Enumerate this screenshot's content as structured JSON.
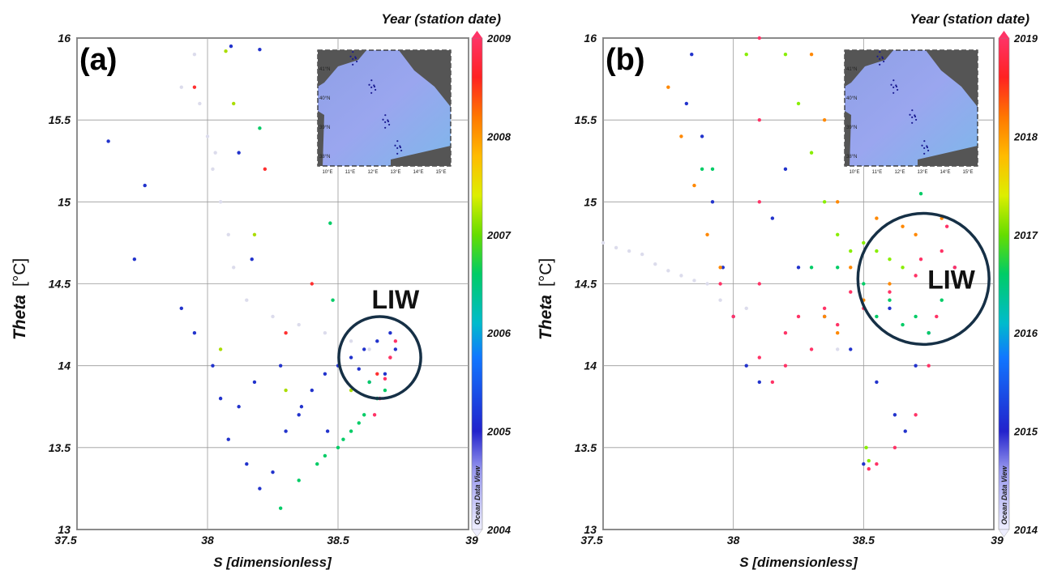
{
  "chart_data": [
    {
      "type": "scatter",
      "panel_label": "(a)",
      "xlabel": "S [dimensionless]",
      "ylabel": "Theta",
      "ylabel_unit": "[°C]",
      "xlim": [
        37.5,
        39
      ],
      "ylim": [
        13,
        16
      ],
      "x_ticks": [
        "37.5",
        "38",
        "38.5",
        "39"
      ],
      "y_ticks": [
        "13",
        "13.5",
        "14",
        "14.5",
        "15",
        "15.5",
        "16"
      ],
      "grid": true,
      "colorbar": {
        "title": "Year (station date)",
        "min": 2004,
        "max": 2009,
        "ticks": [
          "2004",
          "2005",
          "2006",
          "2007",
          "2008",
          "2009"
        ],
        "watermark": "Ocean Data View"
      },
      "annotation": {
        "text": "LIW",
        "circle_center": [
          38.66,
          14.05
        ],
        "circle_radius_theta": 0.25
      },
      "inset_map": {
        "lat_labels": [
          "41°N",
          "40°N",
          "39°N",
          "38°N"
        ],
        "lon_labels": [
          "10°E",
          "11°E",
          "12°E",
          "13°E",
          "14°E",
          "15°E"
        ]
      },
      "series": [
        {
          "year": 2004,
          "color": "#dcdcec",
          "points": [
            [
              37.95,
              15.9
            ],
            [
              37.97,
              15.6
            ],
            [
              38.0,
              15.4
            ],
            [
              38.02,
              15.2
            ],
            [
              38.05,
              15.0
            ],
            [
              38.08,
              14.8
            ],
            [
              38.1,
              14.6
            ],
            [
              38.15,
              14.4
            ],
            [
              38.25,
              14.3
            ],
            [
              38.35,
              14.25
            ],
            [
              38.45,
              14.2
            ],
            [
              38.55,
              14.15
            ],
            [
              38.62,
              14.1
            ],
            [
              37.9,
              15.7
            ],
            [
              38.03,
              15.3
            ]
          ]
        },
        {
          "year": 2005,
          "color": "#2233cc",
          "points": [
            [
              37.62,
              15.37
            ],
            [
              37.72,
              14.65
            ],
            [
              37.76,
              15.1
            ],
            [
              37.9,
              14.35
            ],
            [
              37.95,
              14.2
            ],
            [
              38.02,
              14.0
            ],
            [
              38.05,
              13.8
            ],
            [
              38.08,
              13.55
            ],
            [
              38.12,
              13.75
            ],
            [
              38.15,
              13.4
            ],
            [
              38.2,
              13.25
            ],
            [
              38.25,
              13.35
            ],
            [
              38.3,
              13.6
            ],
            [
              38.35,
              13.7
            ],
            [
              38.4,
              13.85
            ],
            [
              38.45,
              13.95
            ],
            [
              38.5,
              14.0
            ],
            [
              38.55,
              14.05
            ],
            [
              38.6,
              14.1
            ],
            [
              38.65,
              14.15
            ],
            [
              38.7,
              14.2
            ],
            [
              38.72,
              14.1
            ],
            [
              38.68,
              13.95
            ],
            [
              38.62,
              13.9
            ],
            [
              38.58,
              13.98
            ],
            [
              38.2,
              15.93
            ],
            [
              38.17,
              14.65
            ],
            [
              38.12,
              15.3
            ],
            [
              38.09,
              15.95
            ],
            [
              38.28,
              14.0
            ],
            [
              38.36,
              13.75
            ],
            [
              38.46,
              13.6
            ],
            [
              38.18,
              13.9
            ]
          ]
        },
        {
          "year": 2006,
          "color": "#00cc66",
          "points": [
            [
              38.28,
              13.13
            ],
            [
              38.35,
              13.3
            ],
            [
              38.42,
              13.4
            ],
            [
              38.5,
              13.5
            ],
            [
              38.55,
              13.6
            ],
            [
              38.6,
              13.7
            ],
            [
              38.65,
              13.8
            ],
            [
              38.68,
              13.85
            ],
            [
              38.45,
              13.45
            ],
            [
              38.52,
              13.55
            ],
            [
              38.58,
              13.65
            ],
            [
              38.47,
              14.87
            ],
            [
              38.2,
              15.45
            ],
            [
              38.48,
              14.4
            ],
            [
              38.62,
              13.9
            ]
          ]
        },
        {
          "year": 2007,
          "color": "#aadd00",
          "points": [
            [
              38.1,
              15.6
            ],
            [
              38.07,
              15.92
            ],
            [
              38.18,
              14.8
            ],
            [
              38.05,
              14.1
            ],
            [
              38.3,
              13.85
            ],
            [
              38.55,
              13.85
            ]
          ]
        },
        {
          "year": 2008,
          "color": "#ff3030",
          "points": [
            [
              38.22,
              15.2
            ],
            [
              37.95,
              15.7
            ],
            [
              38.3,
              14.2
            ],
            [
              38.65,
              13.95
            ],
            [
              38.4,
              14.5
            ],
            [
              38.7,
              14.05
            ]
          ]
        },
        {
          "year": 2009,
          "color": "#ff3366",
          "points": [
            [
              38.7,
              14.05
            ],
            [
              38.72,
              14.15
            ],
            [
              38.68,
              13.92
            ],
            [
              38.66,
              13.8
            ],
            [
              38.64,
              13.7
            ]
          ]
        }
      ]
    },
    {
      "type": "scatter",
      "panel_label": "(b)",
      "xlabel": "S [dimensionless]",
      "ylabel": "Theta",
      "ylabel_unit": "[°C]",
      "xlim": [
        37.5,
        39
      ],
      "ylim": [
        13,
        16
      ],
      "x_ticks": [
        "37.5",
        "38",
        "38.5",
        "39"
      ],
      "y_ticks": [
        "13",
        "13.5",
        "14",
        "14.5",
        "15",
        "15.5",
        "16"
      ],
      "grid": true,
      "colorbar": {
        "title": "Year (station date)",
        "min": 2014,
        "max": 2019,
        "ticks": [
          "2014",
          "2015",
          "2016",
          "2017",
          "2018",
          "2019"
        ],
        "watermark": "Ocean Data View"
      },
      "annotation": {
        "text": "LIW",
        "circle_center": [
          38.73,
          14.53
        ],
        "circle_radius_theta": 0.4
      },
      "inset_map": {
        "lat_labels": [
          "41°N",
          "40°N",
          "39°N",
          "38°N"
        ],
        "lon_labels": [
          "10°E",
          "11°E",
          "12°E",
          "13°E",
          "14°E",
          "15°E"
        ]
      },
      "series": [
        {
          "year": 2014,
          "color": "#dcdcec",
          "points": [
            [
              37.5,
              14.75
            ],
            [
              37.6,
              14.7
            ],
            [
              37.7,
              14.62
            ],
            [
              37.8,
              14.55
            ],
            [
              37.9,
              14.5
            ],
            [
              37.95,
              14.4
            ],
            [
              37.75,
              14.58
            ],
            [
              37.85,
              14.52
            ],
            [
              38.05,
              14.35
            ],
            [
              38.2,
              14.2
            ],
            [
              38.4,
              14.1
            ],
            [
              37.55,
              14.72
            ],
            [
              37.65,
              14.68
            ]
          ]
        },
        {
          "year": 2015,
          "color": "#2233cc",
          "points": [
            [
              37.84,
              15.9
            ],
            [
              37.88,
              15.4
            ],
            [
              37.92,
              15.0
            ],
            [
              37.96,
              14.6
            ],
            [
              38.0,
              14.3
            ],
            [
              38.05,
              14.0
            ],
            [
              38.1,
              13.9
            ],
            [
              38.2,
              15.2
            ],
            [
              38.25,
              14.6
            ],
            [
              38.35,
              14.3
            ],
            [
              38.45,
              14.1
            ],
            [
              38.55,
              13.9
            ],
            [
              38.62,
              13.7
            ],
            [
              38.66,
              13.6
            ],
            [
              38.7,
              14.0
            ],
            [
              38.75,
              14.2
            ],
            [
              38.5,
              13.4
            ],
            [
              38.6,
              14.35
            ],
            [
              38.85,
              14.6
            ],
            [
              37.82,
              15.6
            ],
            [
              38.15,
              14.9
            ]
          ]
        },
        {
          "year": 2016,
          "color": "#00cc66",
          "points": [
            [
              37.88,
              15.2
            ],
            [
              37.92,
              15.2
            ],
            [
              38.3,
              14.6
            ],
            [
              38.4,
              14.6
            ],
            [
              38.5,
              14.5
            ],
            [
              38.6,
              14.4
            ],
            [
              38.7,
              14.3
            ],
            [
              38.75,
              14.2
            ],
            [
              38.8,
              14.4
            ],
            [
              38.65,
              14.25
            ],
            [
              38.72,
              15.05
            ],
            [
              38.55,
              14.3
            ]
          ]
        },
        {
          "year": 2017,
          "color": "#88ee00",
          "points": [
            [
              38.2,
              15.9
            ],
            [
              38.25,
              15.6
            ],
            [
              38.3,
              15.3
            ],
            [
              38.35,
              15.0
            ],
            [
              38.4,
              14.8
            ],
            [
              38.45,
              14.7
            ],
            [
              38.5,
              14.75
            ],
            [
              38.55,
              14.7
            ],
            [
              38.6,
              14.65
            ],
            [
              38.51,
              13.5
            ],
            [
              38.52,
              13.42
            ],
            [
              38.65,
              14.6
            ],
            [
              38.05,
              15.9
            ]
          ]
        },
        {
          "year": 2018,
          "color": "#ff8800",
          "points": [
            [
              37.75,
              15.7
            ],
            [
              37.8,
              15.4
            ],
            [
              37.85,
              15.1
            ],
            [
              37.9,
              14.8
            ],
            [
              37.95,
              14.6
            ],
            [
              38.3,
              15.9
            ],
            [
              38.35,
              15.5
            ],
            [
              38.4,
              15.0
            ],
            [
              38.45,
              14.6
            ],
            [
              38.5,
              14.4
            ],
            [
              38.6,
              14.5
            ],
            [
              38.7,
              14.8
            ],
            [
              38.8,
              14.9
            ],
            [
              38.35,
              14.3
            ],
            [
              38.4,
              14.2
            ],
            [
              38.55,
              14.9
            ],
            [
              38.65,
              14.85
            ]
          ]
        },
        {
          "year": 2019,
          "color": "#ff3366",
          "points": [
            [
              38.1,
              16.0
            ],
            [
              38.1,
              15.5
            ],
            [
              38.1,
              15.0
            ],
            [
              38.1,
              14.5
            ],
            [
              38.1,
              14.05
            ],
            [
              38.2,
              14.0
            ],
            [
              38.3,
              14.1
            ],
            [
              38.4,
              14.25
            ],
            [
              38.5,
              14.35
            ],
            [
              38.6,
              14.45
            ],
            [
              38.7,
              14.55
            ],
            [
              38.8,
              14.7
            ],
            [
              38.82,
              14.85
            ],
            [
              38.78,
              14.3
            ],
            [
              38.75,
              14.0
            ],
            [
              38.7,
              13.7
            ],
            [
              38.62,
              13.5
            ],
            [
              38.55,
              13.4
            ],
            [
              38.52,
              13.37
            ],
            [
              38.15,
              13.9
            ],
            [
              37.95,
              14.5
            ],
            [
              38.0,
              14.3
            ],
            [
              38.25,
              14.3
            ],
            [
              38.45,
              14.45
            ],
            [
              38.85,
              14.6
            ],
            [
              38.72,
              14.65
            ],
            [
              38.2,
              14.2
            ],
            [
              38.35,
              14.35
            ]
          ]
        }
      ]
    }
  ]
}
